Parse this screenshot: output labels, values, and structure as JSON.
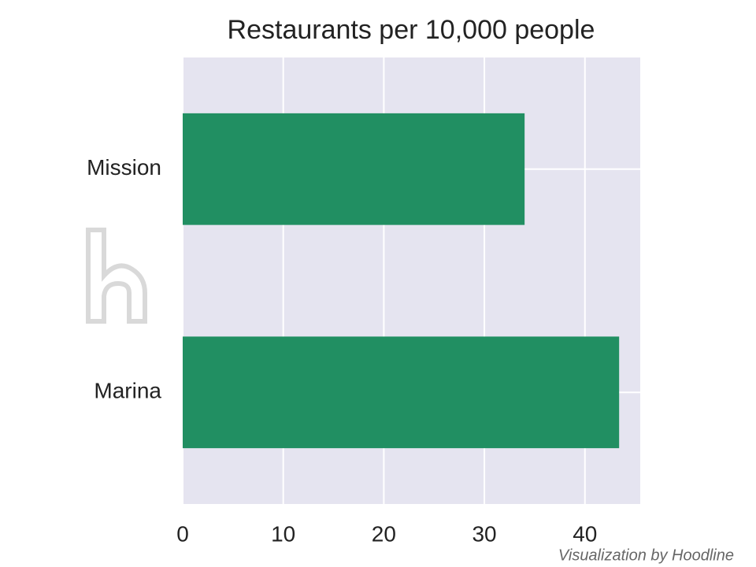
{
  "chart_data": {
    "type": "barh",
    "title": "Restaurants per 10,000 people",
    "categories": [
      "Mission",
      "Marina"
    ],
    "values": [
      34,
      43.4
    ],
    "color": "#218f62",
    "xlim": [
      0,
      45.5
    ],
    "xticks": [
      0,
      10,
      20,
      30,
      40
    ],
    "grid": true,
    "credit": "Visualization by Hoodline"
  }
}
